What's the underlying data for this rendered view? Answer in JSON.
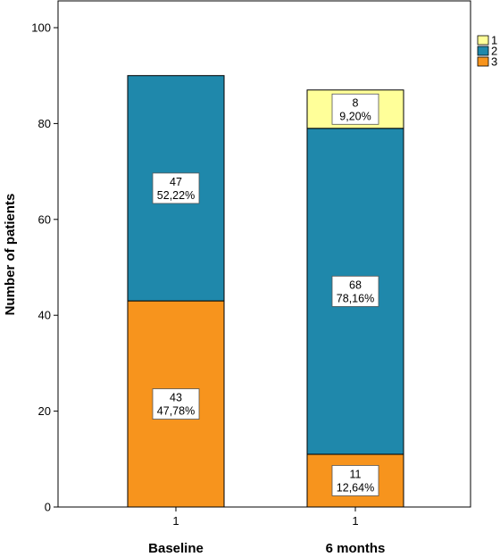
{
  "chart_data": {
    "type": "bar",
    "stacked": true,
    "categories": [
      "Baseline",
      "6 months"
    ],
    "category_sublabels": [
      "1",
      "1"
    ],
    "series": [
      {
        "name": "3",
        "color": "#f7941d",
        "values": [
          43,
          11
        ],
        "labels": [
          "43\n47,78%",
          "11\n12,64%"
        ]
      },
      {
        "name": "2",
        "color": "#1f88ab",
        "values": [
          47,
          68
        ],
        "labels": [
          "47\n52,22%",
          "68\n78,16%"
        ]
      },
      {
        "name": "1",
        "color": "#ffff99",
        "values": [
          0,
          8
        ],
        "labels": [
          "",
          "8\n9,20%"
        ]
      }
    ],
    "legend_order": [
      "1",
      "2",
      "3"
    ],
    "ylabel": "Number of patients",
    "xlabel": "",
    "ylim": [
      0,
      100
    ],
    "yticks": [
      0,
      20,
      40,
      60,
      80,
      100
    ],
    "grid": false,
    "legend_position": "top-right"
  }
}
